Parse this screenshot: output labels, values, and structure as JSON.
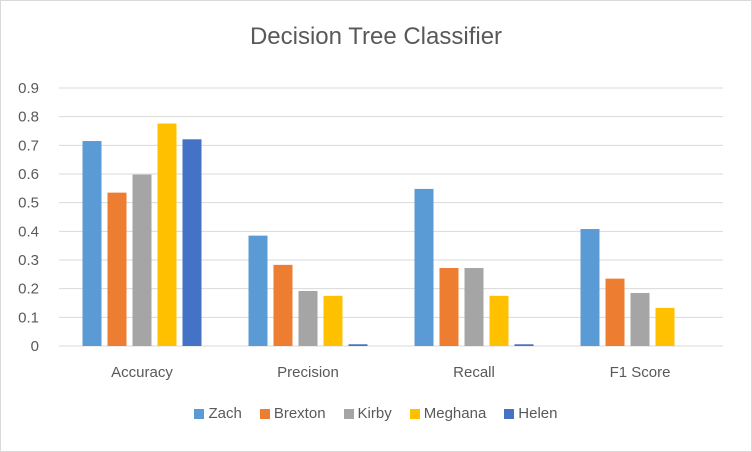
{
  "chart_data": {
    "type": "bar",
    "title": "Decision Tree Classifier",
    "categories": [
      "Accuracy",
      "Precision",
      "Recall",
      "F1 Score"
    ],
    "series": [
      {
        "name": "Zach",
        "color": "#5b9bd5",
        "values": [
          0.715,
          0.385,
          0.548,
          0.408
        ]
      },
      {
        "name": "Brexton",
        "color": "#ed7d31",
        "values": [
          0.535,
          0.283,
          0.272,
          0.235
        ]
      },
      {
        "name": "Kirby",
        "color": "#a5a5a5",
        "values": [
          0.598,
          0.192,
          0.272,
          0.185
        ]
      },
      {
        "name": "Meghana",
        "color": "#ffc000",
        "values": [
          0.776,
          0.175,
          0.175,
          0.133
        ]
      },
      {
        "name": "Helen",
        "color": "#4472c4",
        "values": [
          0.721,
          0.006,
          0.006,
          0.0
        ]
      }
    ],
    "ylim": [
      0,
      0.9
    ],
    "yticks": [
      "0",
      "0.1",
      "0.2",
      "0.3",
      "0.4",
      "0.5",
      "0.6",
      "0.7",
      "0.8",
      "0.9"
    ],
    "grid": true,
    "legend": "bottom"
  }
}
